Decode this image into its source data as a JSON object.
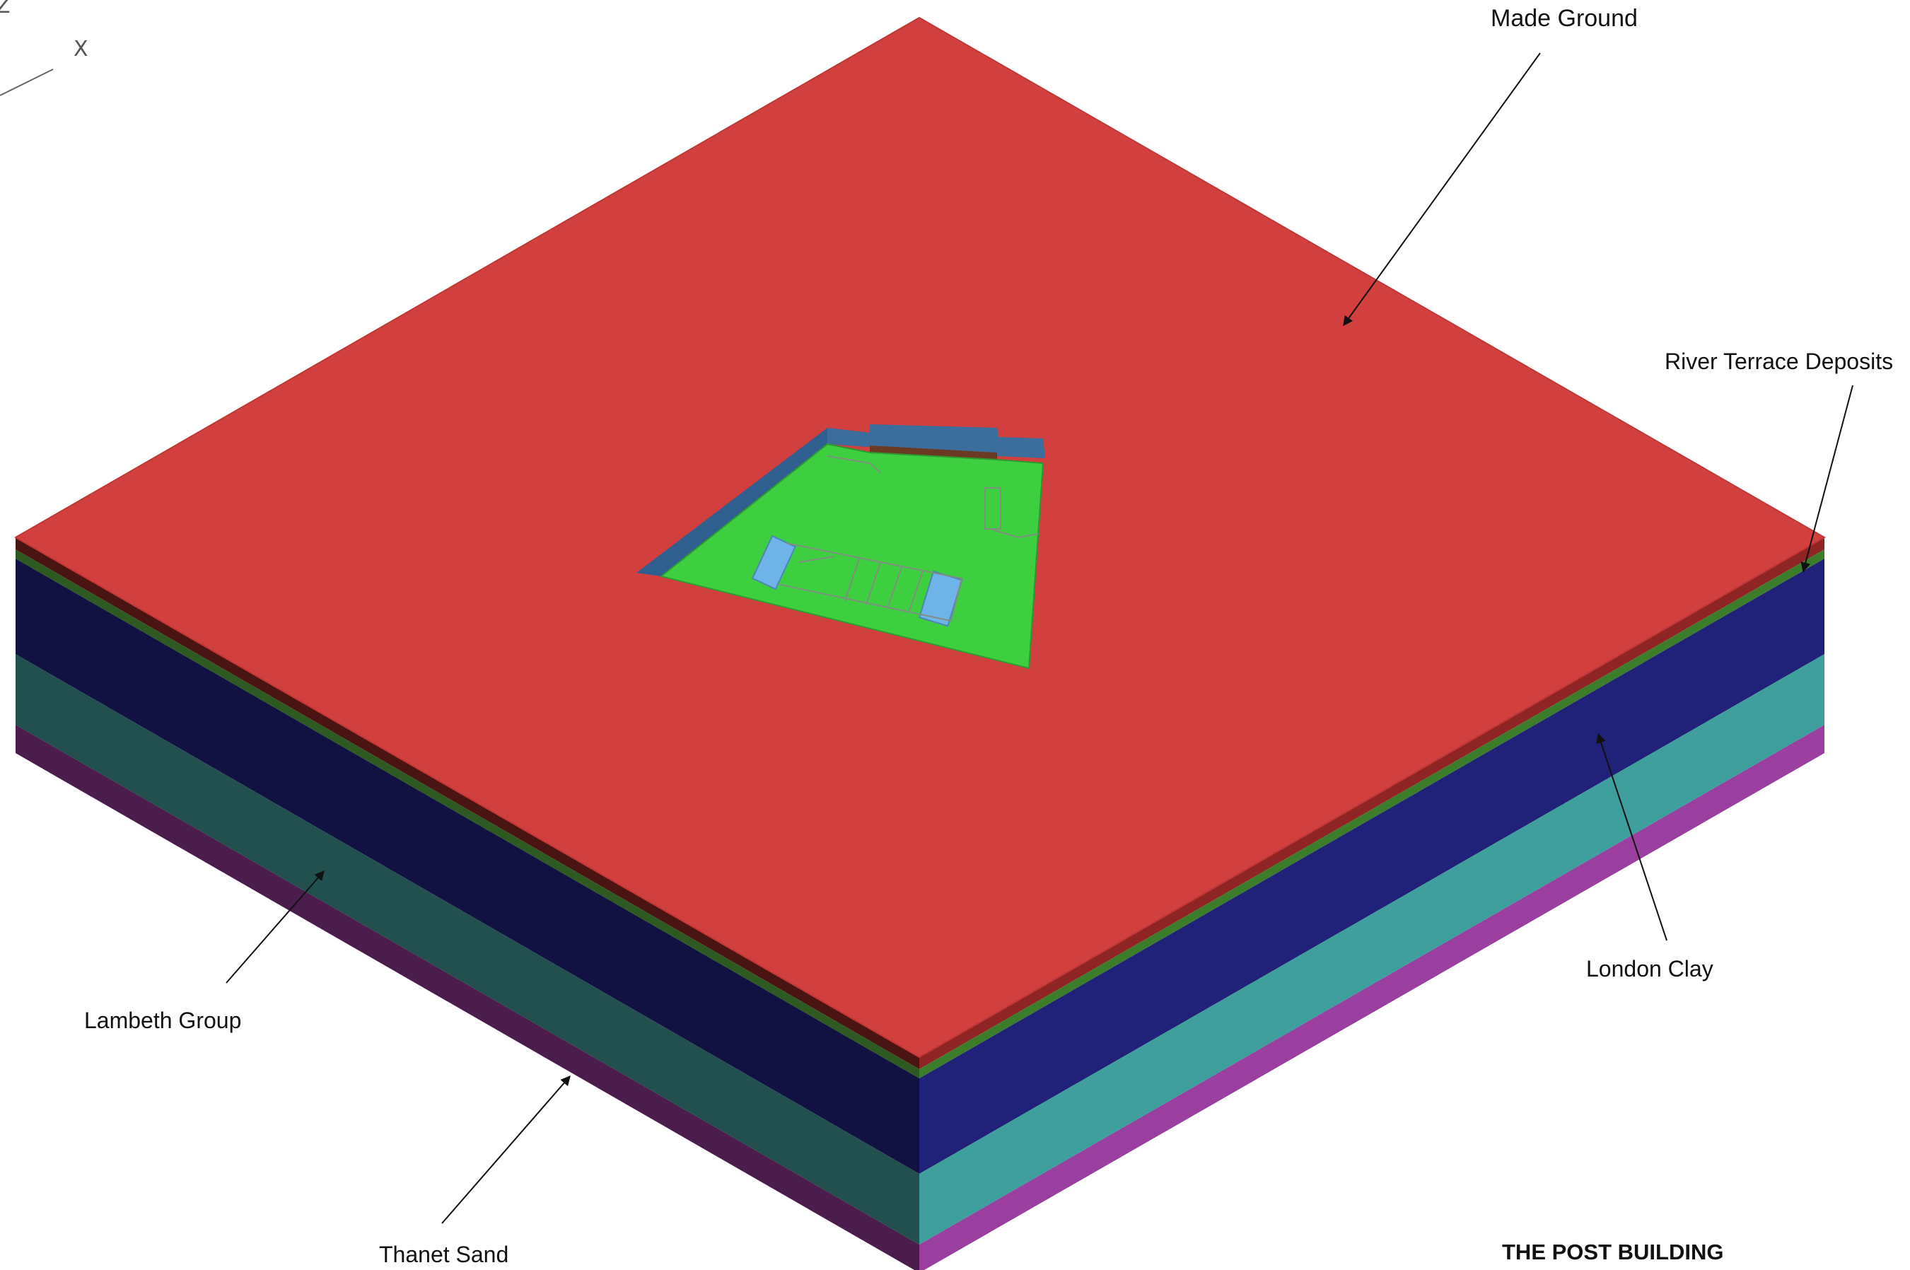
{
  "title": "THE POST BUILDING",
  "axis": {
    "x_label": "X",
    "z_label": "Z"
  },
  "layers": [
    {
      "name": "Made Ground",
      "color": "#d13f3f"
    },
    {
      "name": "River Terrace Deposits",
      "color": "#3c7d2c"
    },
    {
      "name": "London Clay",
      "color": "#202279"
    },
    {
      "name": "Lambeth Group",
      "color": "#3e9f9c"
    },
    {
      "name": "Thanet Sand",
      "color": "#9a3ea0"
    }
  ],
  "excavation": {
    "base_color": "#3dcf3f",
    "wall_color": "#2f5f8f",
    "pad_color": "#6fb4e9"
  },
  "labels": {
    "made_ground": "Made Ground",
    "river_terrace": "River Terrace Deposits",
    "london_clay": "London Clay",
    "lambeth_group": "Lambeth Group",
    "thanet_sand": "Thanet Sand"
  }
}
